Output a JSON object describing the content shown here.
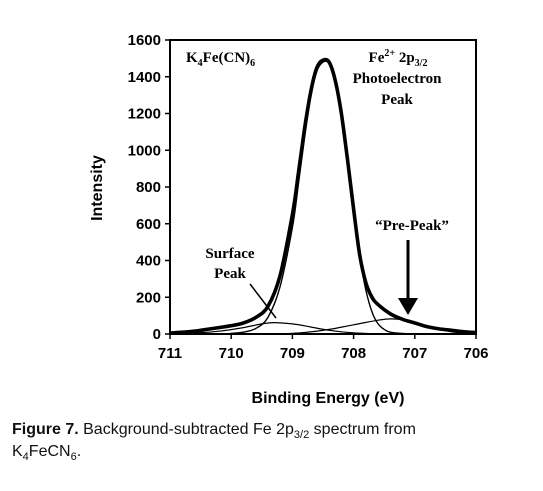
{
  "chart_data": {
    "type": "line",
    "xlabel": "Binding Energy (eV)",
    "ylabel": "Intensity",
    "xlim": [
      711,
      706
    ],
    "ylim": [
      0,
      1600
    ],
    "x_ticks": [
      "711",
      "710",
      "709",
      "708",
      "707",
      "706"
    ],
    "y_ticks": [
      "0",
      "200",
      "400",
      "600",
      "800",
      "1000",
      "1200",
      "1400",
      "1600"
    ],
    "grid": false,
    "legend": "none",
    "annotations": {
      "compound": "K4Fe(CN)6",
      "peak_label_1": "Fe2+ 2p3/2",
      "peak_label_2": "Photoelectron",
      "peak_label_3": "Peak",
      "surface_1": "Surface",
      "surface_2": "Peak",
      "prepeak": "“Pre-Peak”"
    },
    "series": [
      {
        "role": "measured spectrum",
        "x": [
          711.0,
          710.8,
          710.6,
          710.4,
          710.2,
          710.0,
          709.8,
          709.6,
          709.4,
          709.2,
          709.0,
          708.9,
          708.8,
          708.7,
          708.6,
          708.5,
          708.4,
          708.3,
          708.2,
          708.1,
          708.0,
          707.9,
          707.8,
          707.7,
          707.6,
          707.4,
          707.2,
          707.0,
          706.8,
          706.6,
          706.4,
          706.2,
          706.0
        ],
        "y": [
          5,
          10,
          15,
          25,
          35,
          45,
          60,
          90,
          150,
          320,
          650,
          880,
          1120,
          1320,
          1450,
          1490,
          1480,
          1380,
          1200,
          950,
          680,
          430,
          280,
          200,
          160,
          110,
          80,
          60,
          40,
          28,
          20,
          12,
          8
        ]
      },
      {
        "role": "main peak fit",
        "x": [
          710.2,
          710.0,
          709.8,
          709.6,
          709.4,
          709.2,
          709.0,
          708.9,
          708.8,
          708.7,
          708.6,
          708.5,
          708.4,
          708.3,
          708.2,
          708.1,
          708.0,
          707.9,
          707.8,
          707.7,
          707.6,
          707.5,
          707.4,
          707.2,
          707.0,
          706.8
        ],
        "y": [
          0,
          3,
          10,
          30,
          90,
          260,
          580,
          820,
          1070,
          1290,
          1430,
          1480,
          1470,
          1370,
          1190,
          940,
          670,
          420,
          240,
          120,
          55,
          25,
          10,
          3,
          1,
          0
        ]
      },
      {
        "role": "surface peak fit",
        "x": [
          711.0,
          710.6,
          710.2,
          709.8,
          709.5,
          709.3,
          709.0,
          708.7,
          708.4,
          708.0,
          707.6
        ],
        "y": [
          0,
          5,
          15,
          35,
          55,
          62,
          55,
          38,
          20,
          6,
          0
        ]
      },
      {
        "role": "pre-peak fit",
        "x": [
          709.2,
          708.8,
          708.4,
          708.0,
          707.6,
          707.4,
          707.2,
          707.0,
          706.7,
          706.4,
          706.0
        ],
        "y": [
          0,
          8,
          25,
          50,
          75,
          82,
          78,
          62,
          35,
          12,
          0
        ]
      }
    ]
  },
  "caption": {
    "label": "Figure 7.",
    "text_a": " Background-subtracted Fe 2p",
    "text_a_sub": "3/2",
    "text_b": " spectrum from",
    "text_c": "K",
    "text_c_sub1": "4",
    "text_d": "FeCN",
    "text_d_sub2": "6",
    "text_e": "."
  }
}
